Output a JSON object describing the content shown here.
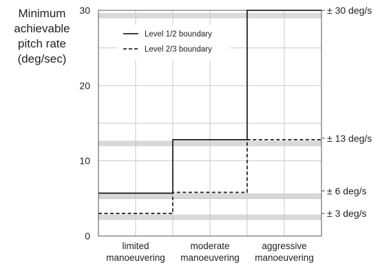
{
  "chart_data": {
    "type": "line",
    "ylabel_lines": [
      "Minimum",
      "achievable",
      "pitch rate",
      "(deg/sec)"
    ],
    "ylim": [
      0,
      30
    ],
    "yticks": [
      0,
      10,
      20,
      30
    ],
    "categories": [
      "limited manoeuvering",
      "moderate manoeuvering",
      "aggressive manoeuvering"
    ],
    "category_lines": [
      [
        "limited",
        "manoeuvering"
      ],
      [
        "moderate",
        "manoeuvering"
      ],
      [
        "aggressive",
        "manoeuvering"
      ]
    ],
    "series": [
      {
        "name": "Level 1/2 boundary",
        "style": "solid",
        "values": [
          5.7,
          12.8,
          30
        ]
      },
      {
        "name": "Level 2/3 boundary",
        "style": "dashed",
        "values": [
          3.0,
          5.8,
          12.8
        ]
      }
    ],
    "reference_bands": [
      2.5,
      5.3,
      12.3,
      29.3
    ],
    "right_labels": [
      {
        "text": "± 30 deg/s",
        "value": 30
      },
      {
        "text": "± 13 deg/s",
        "value": 13
      },
      {
        "text": "± 6 deg/s",
        "value": 6
      },
      {
        "text": "± 3 deg/s",
        "value": 3
      }
    ],
    "grid": true,
    "legend_position": "top-left",
    "colors": {
      "line": "#222222",
      "grid": "#c8c8c8",
      "band": "#d9d9d9",
      "axis": "#555555"
    }
  }
}
